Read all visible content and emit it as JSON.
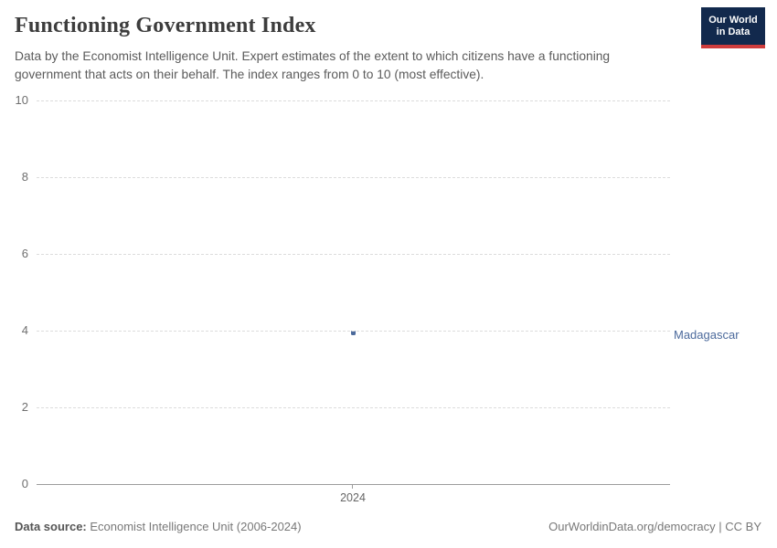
{
  "header": {
    "title": "Functioning Government Index",
    "subtitle": "Data by the Economist Intelligence Unit. Expert estimates of the extent to which citizens have a functioning government that acts on their behalf. The index ranges from 0 to 10 (most effective).",
    "logo": {
      "line1": "Our World",
      "line2": "in Data",
      "bg_color": "#12294d",
      "accent_color": "#cf3c3c"
    }
  },
  "chart_data": {
    "type": "scatter",
    "title": "Functioning Government Index",
    "xlabel": "",
    "ylabel": "",
    "x": [
      2024
    ],
    "series": [
      {
        "name": "Madagascar",
        "values": [
          3.93
        ],
        "color": "#4c6a9c"
      }
    ],
    "x_ticks": [
      "2024"
    ],
    "y_ticks": [
      0,
      2,
      4,
      6,
      8,
      10
    ],
    "ylim": [
      0,
      10
    ],
    "grid": "horizontal-dashed",
    "legend_position": "right-of-point",
    "gridline_color": "#dcdcdc",
    "axis_line_color": "#9c9c9c"
  },
  "footer": {
    "source_label": "Data source:",
    "source_value": " Economist Intelligence Unit (2006-2024)",
    "right_text": "OurWorldinData.org/democracy | CC BY"
  }
}
